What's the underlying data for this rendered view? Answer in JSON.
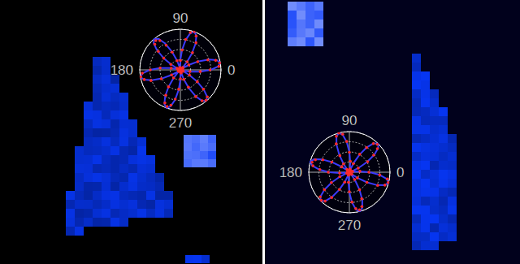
{
  "chart_data": [
    {
      "type": "polar",
      "x": [
        0,
        5,
        10,
        15,
        20,
        25,
        30,
        35,
        40,
        45,
        50,
        55,
        60,
        65,
        70,
        75,
        80,
        85,
        90,
        95,
        100,
        105,
        110,
        115,
        120,
        125,
        130,
        135,
        140,
        145,
        150,
        155,
        160,
        165,
        170,
        175,
        180,
        185,
        190,
        195,
        200,
        205,
        210,
        215,
        220,
        225,
        230,
        235,
        240,
        245,
        250,
        255,
        260,
        265,
        270,
        275,
        280,
        285,
        290,
        295,
        300,
        305,
        310,
        315,
        320,
        325,
        330,
        335,
        340,
        345,
        350,
        355
      ],
      "xlim": [
        0,
        360
      ],
      "xticks": [
        0,
        90,
        180,
        270
      ],
      "ylim": [
        0,
        1
      ],
      "yticks": [
        0.25,
        0.5,
        0.75,
        1
      ],
      "tick_labels": "x",
      "grid": true,
      "series": [
        {
          "type": "scatter",
          "color": "#ff2a2a",
          "marker": "circle",
          "values": [
            0.73,
            0.95,
            0.98,
            0.9,
            0.72,
            0.47,
            0.24,
            0.08,
            0.02,
            0.08,
            0.26,
            0.52,
            0.77,
            0.92,
            1.0,
            0.95,
            0.76,
            0.49,
            0.23,
            0.05,
            0.01,
            0.06,
            0.24,
            0.48,
            0.7,
            0.88,
            0.94,
            0.89,
            0.71,
            0.5,
            0.27,
            0.09,
            0.03,
            0.07,
            0.23,
            0.5,
            0.74,
            0.94,
            0.99,
            0.92,
            0.77,
            0.52,
            0.25,
            0.06,
            0.02,
            0.05,
            0.26,
            0.51,
            0.72,
            0.9,
            0.96,
            0.9,
            0.73,
            0.48,
            0.22,
            0.07,
            0.01,
            0.08,
            0.25,
            0.47,
            0.76,
            0.93,
            0.98,
            0.94,
            0.74,
            0.51,
            0.26,
            0.08,
            0.03,
            0.06,
            0.24,
            0.49
          ]
        },
        {
          "type": "line",
          "color": "#3b3bff",
          "line_style": "solid",
          "values": [
            0.75,
            0.93,
            1,
            0.93,
            0.75,
            0.5,
            0.25,
            0.07,
            0,
            0.07,
            0.25,
            0.5,
            0.75,
            0.93,
            1,
            0.93,
            0.75,
            0.5,
            0.25,
            0.07,
            0,
            0.07,
            0.25,
            0.5,
            0.75,
            0.93,
            1,
            0.93,
            0.75,
            0.5,
            0.25,
            0.07,
            0,
            0.07,
            0.25,
            0.5,
            0.75,
            0.93,
            1,
            0.93,
            0.75,
            0.5,
            0.25,
            0.07,
            0,
            0.07,
            0.25,
            0.5,
            0.75,
            0.93,
            1,
            0.93,
            0.75,
            0.5,
            0.25,
            0.07,
            0,
            0.07,
            0.25,
            0.5,
            0.75,
            0.93,
            1,
            0.93,
            0.75,
            0.5,
            0.25,
            0.07,
            0,
            0.07,
            0.25,
            0.5
          ]
        }
      ]
    },
    {
      "type": "polar",
      "x": [
        0,
        5,
        10,
        15,
        20,
        25,
        30,
        35,
        40,
        45,
        50,
        55,
        60,
        65,
        70,
        75,
        80,
        85,
        90,
        95,
        100,
        105,
        110,
        115,
        120,
        125,
        130,
        135,
        140,
        145,
        150,
        155,
        160,
        165,
        170,
        175,
        180,
        185,
        190,
        195,
        200,
        205,
        210,
        215,
        220,
        225,
        230,
        235,
        240,
        245,
        250,
        255,
        260,
        265,
        270,
        275,
        280,
        285,
        290,
        295,
        300,
        305,
        310,
        315,
        320,
        325,
        330,
        335,
        340,
        345,
        350,
        355
      ],
      "xlim": [
        0,
        360
      ],
      "xticks": [
        0,
        90,
        180,
        270
      ],
      "ylim": [
        0,
        1
      ],
      "yticks": [
        0.25,
        0.5,
        0.75,
        1
      ],
      "tick_labels": "x",
      "grid": true,
      "series": [
        {
          "type": "scatter",
          "color": "#ff2a2a",
          "marker": "circle",
          "values": [
            0.48,
            0.26,
            0.08,
            0.02,
            0.07,
            0.24,
            0.52,
            0.73,
            0.9,
            0.97,
            0.92,
            0.74,
            0.51,
            0.23,
            0.06,
            0.01,
            0.08,
            0.27,
            0.49,
            0.76,
            0.95,
            1.0,
            0.94,
            0.77,
            0.47,
            0.25,
            0.09,
            0.03,
            0.06,
            0.23,
            0.5,
            0.72,
            0.89,
            0.95,
            0.91,
            0.73,
            0.52,
            0.24,
            0.05,
            0.02,
            0.07,
            0.26,
            0.51,
            0.75,
            0.94,
            0.98,
            0.93,
            0.76,
            0.49,
            0.27,
            0.08,
            0.01,
            0.06,
            0.25,
            0.48,
            0.74,
            0.91,
            0.96,
            0.9,
            0.72,
            0.5,
            0.22,
            0.07,
            0.02,
            0.08,
            0.24,
            0.5,
            0.77,
            0.93,
            0.99,
            0.95,
            0.75
          ]
        },
        {
          "type": "line",
          "color": "#3b3bff",
          "line_style": "solid",
          "values": [
            0.5,
            0.25,
            0.07,
            0,
            0.07,
            0.25,
            0.5,
            0.75,
            0.93,
            1,
            0.93,
            0.75,
            0.5,
            0.25,
            0.07,
            0,
            0.07,
            0.25,
            0.5,
            0.75,
            0.93,
            1,
            0.93,
            0.75,
            0.5,
            0.25,
            0.07,
            0,
            0.07,
            0.25,
            0.5,
            0.75,
            0.93,
            1,
            0.93,
            0.75,
            0.5,
            0.25,
            0.07,
            0,
            0.07,
            0.25,
            0.5,
            0.75,
            0.93,
            1,
            0.93,
            0.75,
            0.5,
            0.25,
            0.07,
            0,
            0.07,
            0.25,
            0.5,
            0.75,
            0.93,
            1,
            0.93,
            0.75,
            0.5,
            0.25,
            0.07,
            0,
            0.07,
            0.25,
            0.5,
            0.75,
            0.93,
            1,
            0.93,
            0.75
          ]
        }
      ]
    }
  ]
}
